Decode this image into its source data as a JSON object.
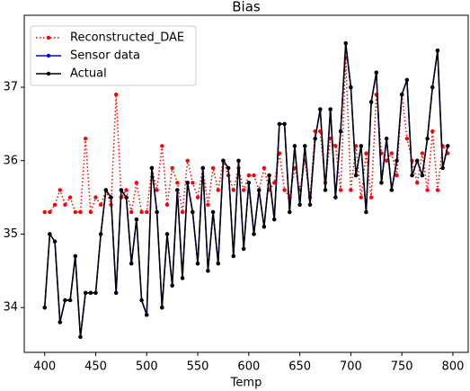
{
  "chart_data": {
    "type": "line",
    "title": "Bias",
    "xlabel": "Temp",
    "x": [
      400,
      405,
      410,
      415,
      420,
      425,
      430,
      435,
      440,
      445,
      450,
      455,
      460,
      465,
      470,
      475,
      480,
      485,
      490,
      495,
      500,
      505,
      510,
      515,
      520,
      525,
      530,
      535,
      540,
      545,
      550,
      555,
      560,
      565,
      570,
      575,
      580,
      585,
      590,
      595,
      600,
      605,
      610,
      615,
      620,
      625,
      630,
      635,
      640,
      645,
      650,
      655,
      660,
      665,
      670,
      675,
      680,
      685,
      690,
      695,
      700,
      705,
      710,
      715,
      720,
      725,
      730,
      735,
      740,
      745,
      750,
      755,
      760,
      765,
      770,
      775,
      780,
      785,
      790,
      795
    ],
    "series": [
      {
        "name": "Reconstructed_DAE",
        "color": "#ff0000",
        "dash": "dotted",
        "values": [
          35.3,
          35.3,
          35.4,
          35.6,
          35.4,
          35.5,
          35.3,
          35.3,
          36.3,
          35.3,
          35.5,
          35.4,
          35.6,
          35.4,
          36.9,
          35.5,
          35.6,
          35.3,
          35.7,
          35.3,
          35.3,
          35.9,
          35.6,
          36.2,
          35.4,
          35.9,
          35.7,
          35.3,
          36.0,
          35.7,
          35.5,
          35.9,
          35.4,
          35.9,
          35.6,
          36.0,
          35.8,
          35.6,
          35.9,
          35.6,
          35.8,
          35.8,
          35.6,
          35.9,
          35.6,
          35.7,
          36.1,
          35.6,
          35.5,
          35.9,
          35.6,
          36.0,
          35.5,
          36.4,
          36.4,
          35.7,
          36.3,
          36.2,
          35.6,
          37.4,
          35.6,
          36.2,
          35.5,
          36.1,
          35.5,
          36.9,
          36.1,
          36.0,
          36.1,
          35.8,
          36.9,
          36.3,
          36.0,
          35.7,
          36.1,
          35.6,
          36.4,
          35.6,
          36.2,
          36.1
        ]
      },
      {
        "name": "Sensor data",
        "color": "#0000ff",
        "dash": "solid",
        "values": [
          34.0,
          35.0,
          34.9,
          33.8,
          34.1,
          34.1,
          34.7,
          33.6,
          34.2,
          34.2,
          34.2,
          35.0,
          35.6,
          35.5,
          34.2,
          35.6,
          35.5,
          34.6,
          35.2,
          34.1,
          33.9,
          35.9,
          35.3,
          34.0,
          35.0,
          34.3,
          35.6,
          34.4,
          35.7,
          35.3,
          34.6,
          35.9,
          34.5,
          35.3,
          34.6,
          36.0,
          35.9,
          34.7,
          36.0,
          34.8,
          35.7,
          35.0,
          35.6,
          35.1,
          35.8,
          35.2,
          36.5,
          36.5,
          35.3,
          36.2,
          35.4,
          36.2,
          35.4,
          36.3,
          36.7,
          35.6,
          36.7,
          35.5,
          36.4,
          37.6,
          37.0,
          35.8,
          36.2,
          35.3,
          36.8,
          37.2,
          35.7,
          36.3,
          35.6,
          36.0,
          36.9,
          37.1,
          35.8,
          36.0,
          35.8,
          36.3,
          37.0,
          37.5,
          35.9,
          36.2
        ]
      },
      {
        "name": "Actual",
        "color": "#000000",
        "dash": "solid",
        "values": [
          34.0,
          35.0,
          34.9,
          33.8,
          34.1,
          34.1,
          34.7,
          33.6,
          34.2,
          34.2,
          34.2,
          35.0,
          35.6,
          35.5,
          34.2,
          35.6,
          35.5,
          34.6,
          35.2,
          34.1,
          33.9,
          35.9,
          35.3,
          34.0,
          35.0,
          34.3,
          35.6,
          34.4,
          35.7,
          35.3,
          34.6,
          35.9,
          34.5,
          35.3,
          34.6,
          36.0,
          35.9,
          34.7,
          36.0,
          34.8,
          35.7,
          35.0,
          35.6,
          35.1,
          35.8,
          35.2,
          36.5,
          36.5,
          35.3,
          36.2,
          35.4,
          36.2,
          35.4,
          36.3,
          36.7,
          35.6,
          36.7,
          35.5,
          36.4,
          37.6,
          37.0,
          35.8,
          36.2,
          35.3,
          36.8,
          37.2,
          35.7,
          36.3,
          35.6,
          36.0,
          36.9,
          37.1,
          35.8,
          36.0,
          35.8,
          36.3,
          37.0,
          37.5,
          35.9,
          36.2
        ]
      }
    ],
    "xlim": [
      380,
      815
    ],
    "ylim": [
      33.39,
      37.98
    ],
    "xticks": [
      400,
      450,
      500,
      550,
      600,
      650,
      700,
      750,
      800
    ],
    "yticks": [
      34,
      35,
      36,
      37
    ],
    "legend": "upper left"
  }
}
